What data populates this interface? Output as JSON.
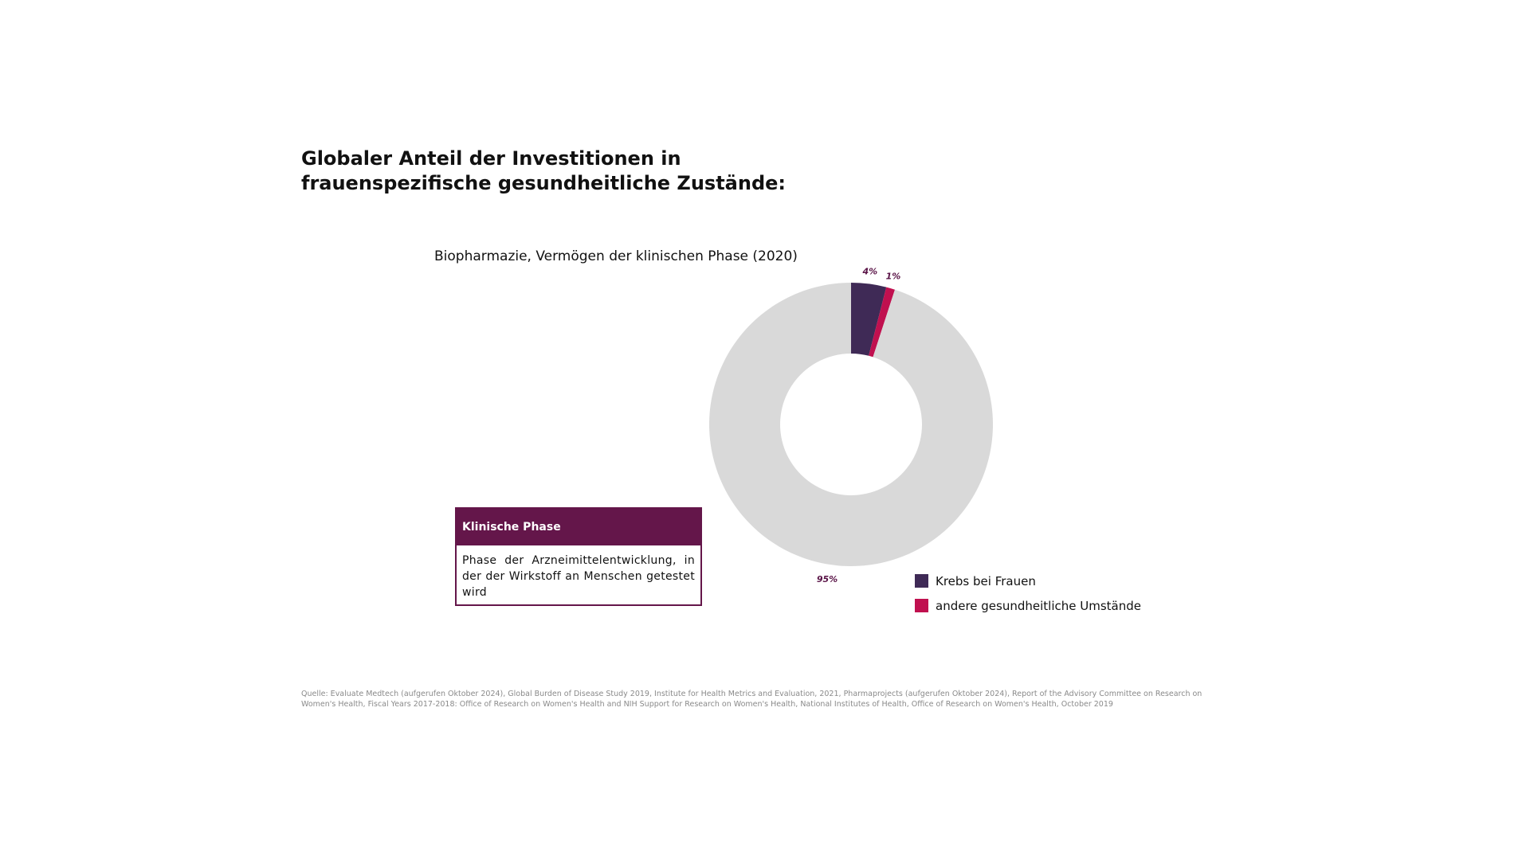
{
  "title": {
    "line1": "Globaler Anteil der Investitionen in",
    "line2": "frauenspezifische gesundheitliche Zustände:"
  },
  "info_box": {
    "header": "Klinische Phase",
    "body": "Phase der Arzneimittelentwicklung, in der der Wirkstoff an Menschen getestet wird"
  },
  "source": "Quelle: Evaluate Medtech (aufgerufen Oktober 2024), Global Burden of Disease Study 2019, Institute for Health Metrics and Evaluation, 2021, Pharmaprojects (aufgerufen Oktober 2024), Report of the Advisory Committee on Research on Women's Health, Fiscal Years 2017-2018: Office of Research on Women's Health and NIH Support for Research on Women's Health, National Institutes of Health, Office of Research on Women's Health, October 2019",
  "chart_data": {
    "type": "pie",
    "subtitle": "Biopharmazie, Vermögen der klinischen Phase (2020)",
    "slices": [
      {
        "name": "Krebs bei Frauen",
        "value": 4,
        "label": "4%",
        "color": "#3f2a56",
        "in_legend": true
      },
      {
        "name": "andere gesundheitliche Umstände",
        "value": 1,
        "label": "1%",
        "color": "#c0104f",
        "in_legend": true
      },
      {
        "name": "",
        "value": 95,
        "label": "95%",
        "color": "#d9d9d9",
        "in_legend": false
      }
    ],
    "legend_position": "bottom-right"
  }
}
